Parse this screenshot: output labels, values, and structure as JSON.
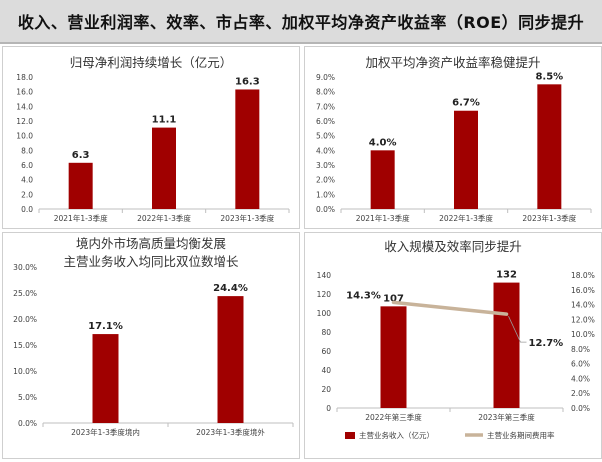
{
  "header": {
    "title": "收入、营业利润率、效率、市占率、加权平均净资产收益率（ROE）同步提升"
  },
  "colors": {
    "bar": "#a00000",
    "line": "#c8b39a",
    "axis": "#bfbfbf",
    "text": "#404040"
  },
  "chart_data": [
    {
      "id": "c1",
      "type": "bar",
      "title": [
        "归母净利润持续增长（亿元）"
      ],
      "categories": [
        "2021年1-3季度",
        "2022年1-3季度",
        "2023年1-3季度"
      ],
      "values": [
        6.3,
        11.1,
        16.3
      ],
      "value_labels": [
        "6.3",
        "11.1",
        "16.3"
      ],
      "ylim": [
        0,
        18
      ],
      "yticks": [
        0,
        2,
        4,
        6,
        8,
        10,
        12,
        14,
        16,
        18
      ],
      "ytick_labels": [
        "0.0",
        "2.0",
        "4.0",
        "6.0",
        "8.0",
        "10.0",
        "12.0",
        "14.0",
        "16.0",
        "18.0"
      ],
      "grid": false
    },
    {
      "id": "c2",
      "type": "bar",
      "title": [
        "加权平均净资产收益率稳健提升"
      ],
      "categories": [
        "2021年1-3季度",
        "2022年1-3季度",
        "2023年1-3季度"
      ],
      "values": [
        4.0,
        6.7,
        8.5
      ],
      "value_labels": [
        "4.0%",
        "6.7%",
        "8.5%"
      ],
      "ylim": [
        0,
        9
      ],
      "yticks": [
        0,
        1,
        2,
        3,
        4,
        5,
        6,
        7,
        8,
        9
      ],
      "ytick_labels": [
        "0.0%",
        "1.0%",
        "2.0%",
        "3.0%",
        "4.0%",
        "5.0%",
        "6.0%",
        "7.0%",
        "8.0%",
        "9.0%"
      ],
      "grid": false
    },
    {
      "id": "c3",
      "type": "bar",
      "title": [
        "境内外市场高质量均衡发展",
        "主营业务收入均同比双位数增长"
      ],
      "categories": [
        "2023年1-3季度境内",
        "2023年1-3季度境外"
      ],
      "values": [
        17.1,
        24.4
      ],
      "value_labels": [
        "17.1%",
        "24.4%"
      ],
      "ylim": [
        0,
        30
      ],
      "yticks": [
        0,
        5,
        10,
        15,
        20,
        25,
        30
      ],
      "ytick_labels": [
        "0.0%",
        "5.0%",
        "10.0%",
        "15.0%",
        "20.0%",
        "25.0%",
        "30.0%"
      ],
      "grid": false
    },
    {
      "id": "c4",
      "type": "bar+line",
      "title": [
        "收入规模及效率同步提升"
      ],
      "categories": [
        "2022年第三季度",
        "2023年第三季度"
      ],
      "series": [
        {
          "name": "主营业务收入（亿元）",
          "type": "bar",
          "axis": "left",
          "values": [
            107,
            132
          ],
          "value_labels": [
            "107",
            "132"
          ]
        },
        {
          "name": "主营业务期间费用率",
          "type": "line",
          "axis": "right",
          "values": [
            14.3,
            12.7
          ],
          "value_labels": [
            "14.3%",
            "12.7%"
          ]
        }
      ],
      "ylim": [
        0,
        140
      ],
      "yticks": [
        0,
        20,
        40,
        60,
        80,
        100,
        120,
        140
      ],
      "ytick_labels": [
        "0",
        "20",
        "40",
        "60",
        "80",
        "100",
        "120",
        "140"
      ],
      "y2lim": [
        0,
        18
      ],
      "y2ticks": [
        0,
        2,
        4,
        6,
        8,
        10,
        12,
        14,
        16,
        18
      ],
      "y2tick_labels": [
        "0.0%",
        "2.0%",
        "4.0%",
        "6.0%",
        "8.0%",
        "10.0%",
        "12.0%",
        "14.0%",
        "16.0%",
        "18.0%"
      ],
      "legend_position": "bottom",
      "grid": false
    }
  ]
}
